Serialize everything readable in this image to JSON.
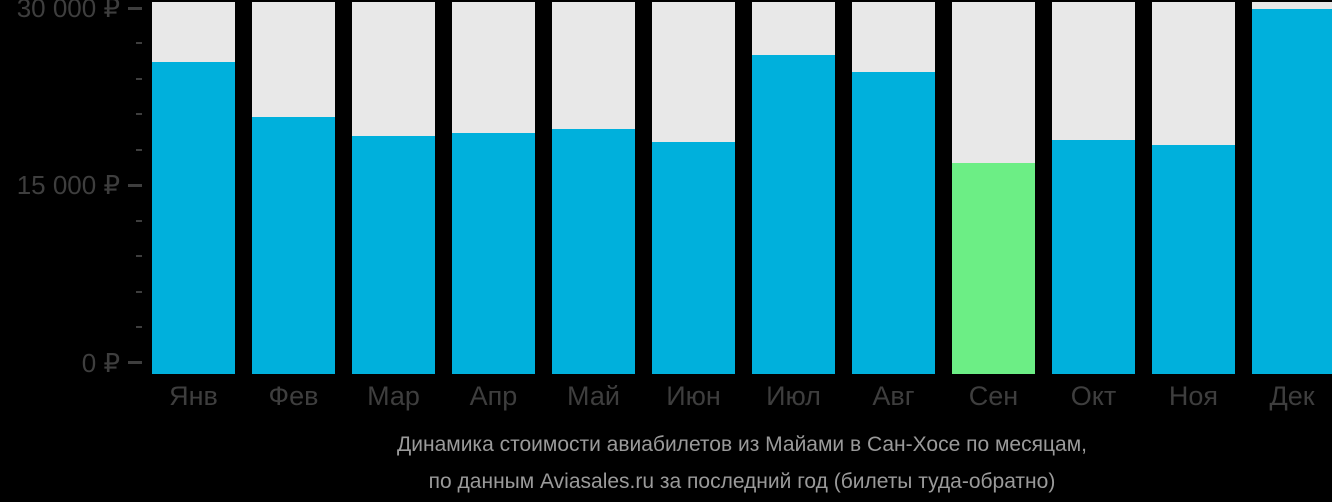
{
  "chart_data": {
    "type": "bar",
    "title_lines": [
      "Динамика стоимости авиабилетов из Майами в Сан-Хосе по месяцам,",
      "по данным Aviasales.ru за последний год (билеты туда-обратно)"
    ],
    "categories": [
      "Янв",
      "Фев",
      "Мар",
      "Апр",
      "Май",
      "Июн",
      "Июл",
      "Авг",
      "Сен",
      "Окт",
      "Ноя",
      "Дек"
    ],
    "values": [
      25400,
      20800,
      19200,
      19400,
      19800,
      18700,
      26000,
      24600,
      16900,
      18800,
      18400,
      29900
    ],
    "highlight_index": 8,
    "currency": "₽",
    "ylabel": "",
    "xlabel": "",
    "ylim": [
      0,
      30000
    ],
    "grid": "off",
    "legend": "none",
    "y_axis": {
      "major_ticks": [
        {
          "value": 0,
          "label": "0 ₽"
        },
        {
          "value": 15000,
          "label": "15 000 ₽"
        },
        {
          "value": 30000,
          "label": "30 000 ₽"
        }
      ],
      "minor_tick_step": 3000
    },
    "colors": {
      "bar": "#00b0dc",
      "highlight_bar": "#6cee85",
      "column_background": "#e8e8e8",
      "page_background": "#000000",
      "axis_text": "#3e3e3e",
      "tick": "#3e3e3e",
      "caption_text": "#9a9a9a"
    }
  }
}
